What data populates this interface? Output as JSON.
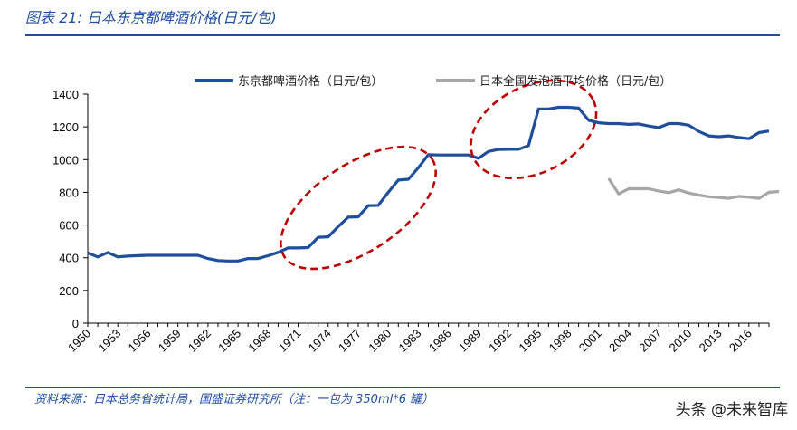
{
  "header": {
    "title": "图表 21: 日本东京都啤酒价格(日元/包)"
  },
  "footer": {
    "source": "资料来源：日本总务省统计局，国盛证券研究所（注：一包为 350ml*6 罐）"
  },
  "watermark": "头条 @未来智库",
  "colors": {
    "tokyo": "#1f4e9c",
    "national": "#a6a6a6",
    "ellipse": "#c00000",
    "title": "#1f4e9c"
  },
  "chart_data": {
    "type": "line",
    "title": "日本东京都啤酒价格(日元/包)",
    "xlabel": "",
    "ylabel": "",
    "ylim": [
      0,
      1400
    ],
    "yticks": [
      0,
      200,
      400,
      600,
      800,
      1000,
      1200,
      1400
    ],
    "xlim": [
      1950,
      2018
    ],
    "xticks": [
      "1950",
      "1953",
      "1956",
      "1959",
      "1962",
      "1965",
      "1968",
      "1971",
      "1974",
      "1977",
      "1980",
      "1983",
      "1986",
      "1989",
      "1992",
      "1995",
      "1998",
      "2001",
      "2004",
      "2007",
      "2010",
      "2013",
      "2016"
    ],
    "legend_position": "top",
    "series": [
      {
        "name": "东京都啤酒价格（日元/包）",
        "color": "#1f4e9c",
        "points": [
          [
            1950,
            430
          ],
          [
            1951,
            405
          ],
          [
            1952,
            432
          ],
          [
            1953,
            405
          ],
          [
            1954,
            410
          ],
          [
            1955,
            413
          ],
          [
            1956,
            415
          ],
          [
            1957,
            415
          ],
          [
            1958,
            415
          ],
          [
            1959,
            415
          ],
          [
            1960,
            415
          ],
          [
            1961,
            415
          ],
          [
            1962,
            395
          ],
          [
            1963,
            383
          ],
          [
            1964,
            380
          ],
          [
            1965,
            380
          ],
          [
            1966,
            395
          ],
          [
            1967,
            395
          ],
          [
            1968,
            412
          ],
          [
            1969,
            433
          ],
          [
            1970,
            460
          ],
          [
            1971,
            460
          ],
          [
            1972,
            462
          ],
          [
            1973,
            525
          ],
          [
            1974,
            528
          ],
          [
            1975,
            590
          ],
          [
            1976,
            648
          ],
          [
            1977,
            650
          ],
          [
            1978,
            718
          ],
          [
            1979,
            720
          ],
          [
            1980,
            800
          ],
          [
            1981,
            875
          ],
          [
            1982,
            880
          ],
          [
            1983,
            950
          ],
          [
            1984,
            1030
          ],
          [
            1985,
            1028
          ],
          [
            1986,
            1028
          ],
          [
            1987,
            1028
          ],
          [
            1988,
            1028
          ],
          [
            1989,
            1008
          ],
          [
            1990,
            1050
          ],
          [
            1991,
            1062
          ],
          [
            1992,
            1063
          ],
          [
            1993,
            1063
          ],
          [
            1994,
            1085
          ],
          [
            1995,
            1310
          ],
          [
            1996,
            1310
          ],
          [
            1997,
            1320
          ],
          [
            1998,
            1320
          ],
          [
            1999,
            1315
          ],
          [
            2000,
            1240
          ],
          [
            2001,
            1225
          ],
          [
            2002,
            1220
          ],
          [
            2003,
            1220
          ],
          [
            2004,
            1215
          ],
          [
            2005,
            1218
          ],
          [
            2006,
            1205
          ],
          [
            2007,
            1195
          ],
          [
            2008,
            1220
          ],
          [
            2009,
            1220
          ],
          [
            2010,
            1210
          ],
          [
            2011,
            1172
          ],
          [
            2012,
            1145
          ],
          [
            2013,
            1140
          ],
          [
            2014,
            1145
          ],
          [
            2015,
            1135
          ],
          [
            2016,
            1128
          ],
          [
            2017,
            1165
          ],
          [
            2018,
            1175
          ]
        ]
      },
      {
        "name": "日本全国发泡酒平均价格（日元/包）",
        "color": "#a6a6a6",
        "points": [
          [
            2002,
            885
          ],
          [
            2003,
            790
          ],
          [
            2004,
            822
          ],
          [
            2005,
            822
          ],
          [
            2006,
            822
          ],
          [
            2007,
            808
          ],
          [
            2008,
            798
          ],
          [
            2009,
            815
          ],
          [
            2010,
            795
          ],
          [
            2011,
            783
          ],
          [
            2012,
            773
          ],
          [
            2013,
            768
          ],
          [
            2014,
            763
          ],
          [
            2015,
            775
          ],
          [
            2016,
            770
          ],
          [
            2017,
            763
          ],
          [
            2018,
            800
          ],
          [
            2019,
            805
          ]
        ]
      }
    ],
    "annotations": [
      {
        "shape": "ellipse",
        "style": "dashed",
        "around_years": [
          1971,
          1983
        ]
      },
      {
        "shape": "ellipse",
        "style": "dashed",
        "around_years": [
          1990,
          1999
        ]
      }
    ]
  }
}
